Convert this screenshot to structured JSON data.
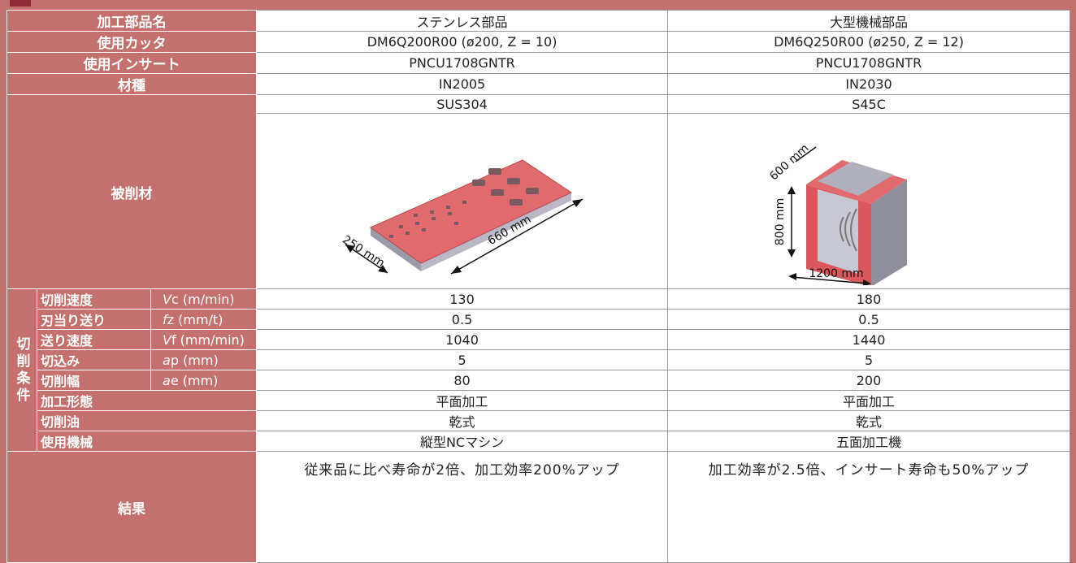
{
  "table": {
    "rows": [
      {
        "label": "加工部品名",
        "cells": [
          "ステンレス部品",
          "大型機械部品"
        ]
      },
      {
        "label": "使用カッタ",
        "cells": [
          "DM6Q200R00 (ø200, Z = 10)",
          "DM6Q250R00 (ø250, Z = 12)"
        ]
      },
      {
        "label": "使用インサート",
        "cells": [
          "PNCU1708GNTR",
          "PNCU1708GNTR"
        ]
      },
      {
        "label": "材種",
        "cells": [
          "IN2005",
          "IN2030"
        ]
      }
    ],
    "workpiece": {
      "label": "被削材",
      "cells": [
        "SUS304",
        "S45C"
      ],
      "figures": [
        {
          "labels": [
            "250 mm",
            "660 mm"
          ]
        },
        {
          "labels": [
            "600 mm",
            "800 mm",
            "1200 mm"
          ]
        }
      ]
    },
    "conditions": {
      "label": "切削条件",
      "rows": [
        {
          "label": "切削速度",
          "symbol": "V",
          "unit": "c (m/min)",
          "cells": [
            "130",
            "180"
          ]
        },
        {
          "label": "刃当り送り",
          "symbol": "f",
          "unit": "z (mm/t)",
          "cells": [
            "0.5",
            "0.5"
          ]
        },
        {
          "label": "送り速度",
          "symbol": "V",
          "unit": "f (mm/min)",
          "cells": [
            "1040",
            "1440"
          ]
        },
        {
          "label": "切込み",
          "symbol": "a",
          "unit": "p (mm)",
          "cells": [
            "5",
            "5"
          ]
        },
        {
          "label": "切削幅",
          "symbol": "a",
          "unit": "e (mm)",
          "cells": [
            "80",
            "200"
          ]
        },
        {
          "label": "加工形態",
          "cells": [
            "平面加工",
            "平面加工"
          ]
        },
        {
          "label": "切削油",
          "cells": [
            "乾式",
            "乾式"
          ]
        },
        {
          "label": "使用機械",
          "cells": [
            "縦型NCマシン",
            "五面加工機"
          ]
        }
      ]
    },
    "result": {
      "label": "結果",
      "cells": [
        "従来品に比べ寿命が2倍、加工効率200%アップ",
        "加工効率が2.5倍、インサート寿命も50%アップ"
      ]
    }
  }
}
